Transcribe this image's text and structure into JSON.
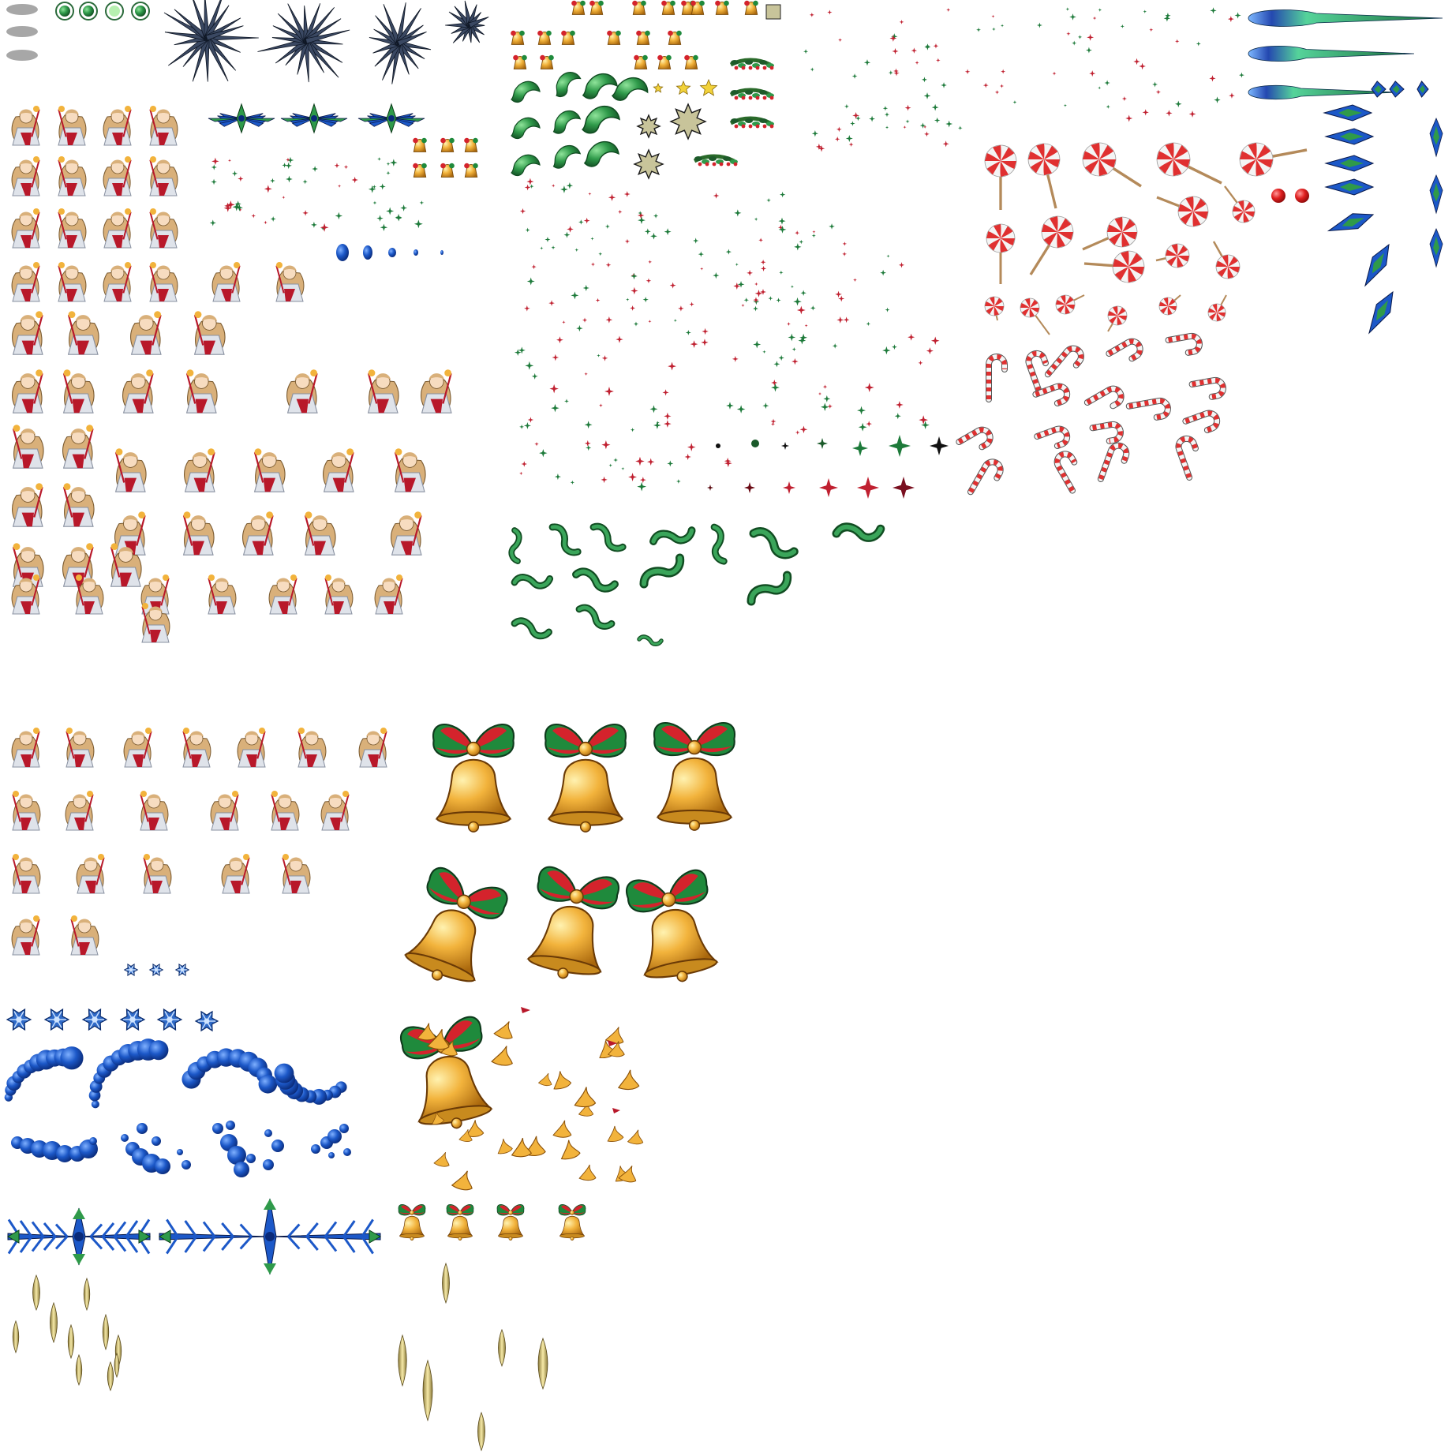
{
  "sheet": {
    "kind": "sprite-sheet",
    "background": "#ffffff",
    "palette": {
      "bell_gold": "#f2b33c",
      "bell_gold_dark": "#a8660c",
      "bow_red": "#d4232c",
      "bow_green": "#1f8a3c",
      "candy_red": "#e03030",
      "candy_white": "#f4f4f4",
      "stick_brown": "#b48a5a",
      "ice_blue": "#1c58c8",
      "ice_dark": "#0a2a78",
      "leaf_green": "#2f9a4a",
      "leaf_dark": "#114d22",
      "hair_blonde": "#d9b07a",
      "robe_white": "#dfe3ea",
      "robe_red": "#b8182a",
      "spark_red": "#c02030",
      "spark_green": "#1d7a3a",
      "needle_gold": "#e2d08a",
      "crystal_dark": "#2a3448",
      "comet_green": "#55d39a",
      "comet_blue": "#2448b0"
    },
    "sprite_groups": [
      {
        "name": "shadow-ovals",
        "icon": "oval-shadow",
        "count": 3
      },
      {
        "name": "green-ring-orbs",
        "icon": "ring-orb",
        "count": 4
      },
      {
        "name": "crystal-bursts",
        "icon": "crystal-burst",
        "count": 4
      },
      {
        "name": "snow-fairy-poses",
        "icon": "character-sprite",
        "count": 80
      },
      {
        "name": "ice-snowflake-wings",
        "icon": "ice-wing",
        "count": 3
      },
      {
        "name": "mini-bells",
        "icon": "bell",
        "count": 30
      },
      {
        "name": "holiday-garlands",
        "icon": "garland",
        "count": 5
      },
      {
        "name": "holly-leaves",
        "icon": "holly-leaf",
        "count": 10
      },
      {
        "name": "gold-stars",
        "icon": "star",
        "count": 3
      },
      {
        "name": "burst-stars",
        "icon": "burst",
        "count": 3
      },
      {
        "name": "sparkle-dots",
        "icon": "sparkle",
        "count": 200
      },
      {
        "name": "green-tendrils",
        "icon": "tendril",
        "count": 16
      },
      {
        "name": "lollipops",
        "icon": "lollipop",
        "count": 21
      },
      {
        "name": "red-balls",
        "icon": "ball",
        "count": 2
      },
      {
        "name": "candy-canes",
        "icon": "candy-cane",
        "count": 21
      },
      {
        "name": "comets",
        "icon": "comet",
        "count": 3
      },
      {
        "name": "ice-shards",
        "icon": "ice-shard",
        "count": 10
      },
      {
        "name": "large-bow-bells",
        "icon": "bell-with-bow",
        "count": 7
      },
      {
        "name": "small-bow-bells",
        "icon": "bell-with-bow",
        "count": 4
      },
      {
        "name": "flame-flickers",
        "icon": "flame",
        "count": 30
      },
      {
        "name": "snowflakes",
        "icon": "snowflake",
        "count": 9
      },
      {
        "name": "blue-bubble-trails",
        "icon": "bubble-trail",
        "count": 8
      },
      {
        "name": "ice-crystal-wings",
        "icon": "ice-wing",
        "count": 2
      },
      {
        "name": "golden-needles",
        "icon": "needle",
        "count": 19
      }
    ]
  }
}
